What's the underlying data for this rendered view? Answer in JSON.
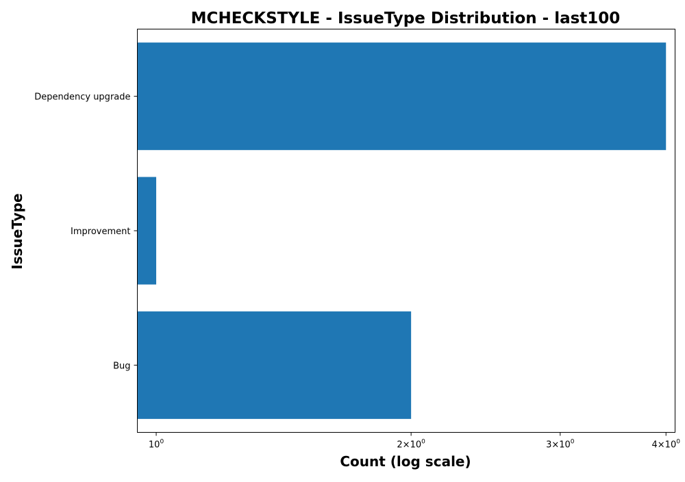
{
  "chart_data": {
    "type": "bar",
    "orientation": "horizontal",
    "title": "MCHECKSTYLE - IssueType Distribution - last100",
    "xlabel": "Count (log scale)",
    "ylabel": "IssueType",
    "x_scale": "log",
    "categories": [
      "Dependency upgrade",
      "Improvement",
      "Bug"
    ],
    "values": [
      4,
      1,
      2
    ],
    "x_ticks": [
      {
        "value": 1,
        "base": "10",
        "exp": "0",
        "label": "10^0"
      },
      {
        "value": 2,
        "base": "2×10",
        "exp": "0",
        "label": "2×10^0"
      },
      {
        "value": 3,
        "base": "3×10",
        "exp": "0",
        "label": "3×10^0"
      },
      {
        "value": 4,
        "base": "4×10",
        "exp": "0",
        "label": "4×10^0"
      }
    ],
    "xlim": [
      0.95,
      4.1
    ],
    "bar_color": "#1f77b4",
    "grid": false,
    "legend": "none"
  }
}
